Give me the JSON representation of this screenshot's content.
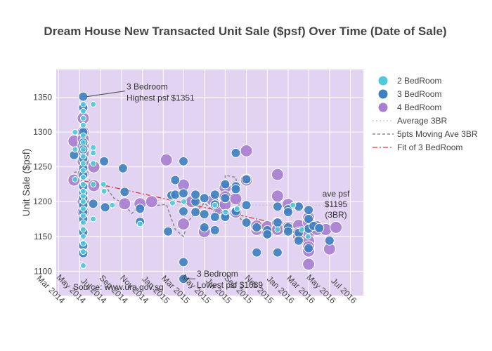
{
  "chart_data": {
    "type": "scatter",
    "title": "Dream House New Transacted Unit Sale ($psf) Over Time (Date of Sale)",
    "ylabel": "Unit Sale ($psf)",
    "xlabel": "",
    "ylim": [
      1065,
      1390
    ],
    "yticks": [
      1100,
      1150,
      1200,
      1250,
      1300,
      1350
    ],
    "xlim": [
      "2014-02-22",
      "2016-08-08"
    ],
    "xticks": [
      {
        "date": "2014-03-01",
        "label": "Mar 2014"
      },
      {
        "date": "2014-05-01",
        "label": "May 2014"
      },
      {
        "date": "2014-07-01",
        "label": "Jul 2014"
      },
      {
        "date": "2014-09-01",
        "label": "Sep 2014"
      },
      {
        "date": "2014-11-01",
        "label": "Nov 2014"
      },
      {
        "date": "2015-01-01",
        "label": "Jan 2015"
      },
      {
        "date": "2015-03-01",
        "label": "Mar 2015"
      },
      {
        "date": "2015-05-01",
        "label": "May 2015"
      },
      {
        "date": "2015-07-01",
        "label": "Jul 2015"
      },
      {
        "date": "2015-09-01",
        "label": "Sep 2015"
      },
      {
        "date": "2015-11-01",
        "label": "Nov 2015"
      },
      {
        "date": "2016-01-01",
        "label": "Jan 2016"
      },
      {
        "date": "2016-03-01",
        "label": "Mar 2016"
      },
      {
        "date": "2016-05-01",
        "label": "May 2016"
      },
      {
        "date": "2016-07-01",
        "label": "Jul 2016"
      }
    ],
    "grid": true,
    "legend_position": "right",
    "colors": {
      "plot_bg": "#e2d3f2",
      "two_bedroom": "#4ec9dd",
      "three_bedroom": "#3d80c0",
      "four_bedroom": "#a77ed0",
      "average_line": "#c9c9c9",
      "moving_avg_line": "#8a8a8a",
      "fit_line": "#d9363e"
    },
    "series": [
      {
        "name": "2 BedRoom",
        "marker_size": "small",
        "points": [
          [
            "2014-05-12",
            1108
          ],
          [
            "2014-05-12",
            1128
          ],
          [
            "2014-05-12",
            1140
          ],
          [
            "2014-05-12",
            1150
          ],
          [
            "2014-05-12",
            1160
          ],
          [
            "2014-05-12",
            1170
          ],
          [
            "2014-05-12",
            1180
          ],
          [
            "2014-05-12",
            1190
          ],
          [
            "2014-05-12",
            1200
          ],
          [
            "2014-05-12",
            1208
          ],
          [
            "2014-05-12",
            1215
          ],
          [
            "2014-05-12",
            1225
          ],
          [
            "2014-05-12",
            1235
          ],
          [
            "2014-05-12",
            1245
          ],
          [
            "2014-05-12",
            1255
          ],
          [
            "2014-05-12",
            1265
          ],
          [
            "2014-05-12",
            1275
          ],
          [
            "2014-05-12",
            1285
          ],
          [
            "2014-05-12",
            1295
          ],
          [
            "2014-05-12",
            1310
          ],
          [
            "2014-05-12",
            1320
          ],
          [
            "2014-05-12",
            1330
          ],
          [
            "2014-05-12",
            1340
          ],
          [
            "2014-04-18",
            1300
          ],
          [
            "2014-04-18",
            1275
          ],
          [
            "2014-04-18",
            1232
          ],
          [
            "2014-06-10",
            1340
          ],
          [
            "2014-06-10",
            1278
          ],
          [
            "2014-06-10",
            1270
          ],
          [
            "2014-06-10",
            1255
          ],
          [
            "2014-06-10",
            1175
          ],
          [
            "2014-06-10",
            1225
          ],
          [
            "2014-07-10",
            1225
          ],
          [
            "2014-07-12",
            1215
          ],
          [
            "2014-08-05",
            1195
          ],
          [
            "2014-10-25",
            1168
          ],
          [
            "2015-01-28",
            1198
          ],
          [
            "2015-03-02",
            1200
          ],
          [
            "2015-06-01",
            1195
          ],
          [
            "2015-07-02",
            1185
          ],
          [
            "2015-08-05",
            1190
          ],
          [
            "2015-12-01",
            1160
          ],
          [
            "2016-01-15",
            1195
          ],
          [
            "2016-02-10",
            1160
          ],
          [
            "2016-02-28",
            1150
          ]
        ]
      },
      {
        "name": "3 BedRoom",
        "marker_size": "medium",
        "points": [
          [
            "2014-05-12",
            1351
          ],
          [
            "2014-05-12",
            1335
          ],
          [
            "2014-05-12",
            1300
          ],
          [
            "2014-05-12",
            1285
          ],
          [
            "2014-05-12",
            1275
          ],
          [
            "2014-05-12",
            1262
          ],
          [
            "2014-05-12",
            1248
          ],
          [
            "2014-05-12",
            1238
          ],
          [
            "2014-05-12",
            1222
          ],
          [
            "2014-05-12",
            1212
          ],
          [
            "2014-05-12",
            1205
          ],
          [
            "2014-05-12",
            1195
          ],
          [
            "2014-05-12",
            1185
          ],
          [
            "2014-05-12",
            1175
          ],
          [
            "2014-05-12",
            1156
          ],
          [
            "2014-05-12",
            1137
          ],
          [
            "2014-05-12",
            1126
          ],
          [
            "2014-04-15",
            1267
          ],
          [
            "2014-06-10",
            1197
          ],
          [
            "2014-07-12",
            1258
          ],
          [
            "2014-07-15",
            1192
          ],
          [
            "2014-09-05",
            1248
          ],
          [
            "2014-09-10",
            1214
          ],
          [
            "2014-10-25",
            1190
          ],
          [
            "2014-10-25",
            1171
          ],
          [
            "2015-01-15",
            1157
          ],
          [
            "2015-01-25",
            1209
          ],
          [
            "2015-02-05",
            1231
          ],
          [
            "2015-02-05",
            1210
          ],
          [
            "2015-03-01",
            1258
          ],
          [
            "2015-03-01",
            1212
          ],
          [
            "2015-03-01",
            1186
          ],
          [
            "2015-03-01",
            1113
          ],
          [
            "2015-03-01",
            1089
          ],
          [
            "2015-04-05",
            1200
          ],
          [
            "2015-04-05",
            1185
          ],
          [
            "2015-04-05",
            1210
          ],
          [
            "2015-05-01",
            1205
          ],
          [
            "2015-05-01",
            1182
          ],
          [
            "2015-05-01",
            1163
          ],
          [
            "2015-06-01",
            1210
          ],
          [
            "2015-06-01",
            1196
          ],
          [
            "2015-06-01",
            1178
          ],
          [
            "2015-06-01",
            1159
          ],
          [
            "2015-07-01",
            1225
          ],
          [
            "2015-07-01",
            1205
          ],
          [
            "2015-07-01",
            1182
          ],
          [
            "2015-07-01",
            1178
          ],
          [
            "2015-08-01",
            1270
          ],
          [
            "2015-08-01",
            1222
          ],
          [
            "2015-08-01",
            1218
          ],
          [
            "2015-08-01",
            1187
          ],
          [
            "2015-08-01",
            1186
          ],
          [
            "2015-09-01",
            1232
          ],
          [
            "2015-09-01",
            1195
          ],
          [
            "2015-09-01",
            1170
          ],
          [
            "2015-10-01",
            1163
          ],
          [
            "2015-10-01",
            1127
          ],
          [
            "2015-11-01",
            1159
          ],
          [
            "2015-11-01",
            1153
          ],
          [
            "2015-12-01",
            1193
          ],
          [
            "2015-12-01",
            1170
          ],
          [
            "2015-12-01",
            1127
          ],
          [
            "2016-01-01",
            1189
          ],
          [
            "2016-01-01",
            1185
          ],
          [
            "2016-01-01",
            1163
          ],
          [
            "2016-01-01",
            1157
          ],
          [
            "2016-02-01",
            1193
          ],
          [
            "2016-02-01",
            1155
          ],
          [
            "2016-02-01",
            1144
          ],
          [
            "2016-03-01",
            1188
          ],
          [
            "2016-03-01",
            1175
          ],
          [
            "2016-03-01",
            1161
          ],
          [
            "2016-03-01",
            1133
          ],
          [
            "2016-03-15",
            1165
          ],
          [
            "2016-04-01",
            1162
          ],
          [
            "2016-05-01",
            1144
          ]
        ]
      },
      {
        "name": "4 BedRoom",
        "marker_size": "large",
        "points": [
          [
            "2014-04-15",
            1287
          ],
          [
            "2014-04-15",
            1231
          ],
          [
            "2014-05-12",
            1320
          ],
          [
            "2014-05-12",
            1300
          ],
          [
            "2014-05-12",
            1290
          ],
          [
            "2014-05-12",
            1280
          ],
          [
            "2014-05-12",
            1270
          ],
          [
            "2014-05-12",
            1258
          ],
          [
            "2014-05-12",
            1240
          ],
          [
            "2014-05-12",
            1200
          ],
          [
            "2014-05-12",
            1185
          ],
          [
            "2014-06-12",
            1250
          ],
          [
            "2014-06-12",
            1223
          ],
          [
            "2014-09-10",
            1197
          ],
          [
            "2014-10-25",
            1197
          ],
          [
            "2014-11-28",
            1200
          ],
          [
            "2015-01-10",
            1260
          ],
          [
            "2015-03-01",
            1224
          ],
          [
            "2015-03-01",
            1168
          ],
          [
            "2015-03-25",
            1200
          ],
          [
            "2015-05-01",
            1157
          ],
          [
            "2015-05-25",
            1202
          ],
          [
            "2015-06-15",
            1190
          ],
          [
            "2015-07-01",
            1220
          ],
          [
            "2015-07-01",
            1207
          ],
          [
            "2015-07-01",
            1196
          ],
          [
            "2015-08-01",
            1185
          ],
          [
            "2015-08-01",
            1204
          ],
          [
            "2015-09-01",
            1273
          ],
          [
            "2015-09-01",
            1231
          ],
          [
            "2015-10-01",
            1160
          ],
          [
            "2015-10-01",
            1165
          ],
          [
            "2015-11-01",
            1155
          ],
          [
            "2015-11-01",
            1164
          ],
          [
            "2015-12-01",
            1239
          ],
          [
            "2015-12-01",
            1208
          ],
          [
            "2015-12-01",
            1169
          ],
          [
            "2015-12-01",
            1161
          ],
          [
            "2015-12-01",
            1160
          ],
          [
            "2016-01-01",
            1196
          ],
          [
            "2016-01-01",
            1163
          ],
          [
            "2016-02-01",
            1166
          ],
          [
            "2016-02-01",
            1155
          ],
          [
            "2016-02-01",
            1150
          ],
          [
            "2016-03-01",
            1177
          ],
          [
            "2016-03-01",
            1170
          ],
          [
            "2016-03-01",
            1155
          ],
          [
            "2016-03-01",
            1143
          ],
          [
            "2016-03-01",
            1135
          ],
          [
            "2016-03-01",
            1129
          ],
          [
            "2016-03-01",
            1110
          ],
          [
            "2016-03-25",
            1164
          ],
          [
            "2016-03-25",
            1160
          ],
          [
            "2016-04-20",
            1160
          ],
          [
            "2016-05-01",
            1132
          ],
          [
            "2016-05-20",
            1163
          ]
        ]
      },
      {
        "name": "Average 3BR",
        "kind": "line",
        "style": "dotted",
        "points": [
          [
            "2014-05-12",
            1195
          ],
          [
            "2016-05-01",
            1195
          ]
        ]
      },
      {
        "name": "5pts Moving Ave 3BR",
        "kind": "line",
        "style": "dashed",
        "points": [
          [
            "2014-04-15",
            1242
          ],
          [
            "2014-05-12",
            1244
          ],
          [
            "2014-06-12",
            1222
          ],
          [
            "2014-07-12",
            1225
          ],
          [
            "2014-08-10",
            1205
          ],
          [
            "2014-09-05",
            1198
          ],
          [
            "2014-10-01",
            1183
          ],
          [
            "2014-10-25",
            1195
          ],
          [
            "2014-11-28",
            1194
          ],
          [
            "2015-01-10",
            1196
          ],
          [
            "2015-02-05",
            1160
          ],
          [
            "2015-03-01",
            1150
          ],
          [
            "2015-03-15",
            1172
          ],
          [
            "2015-04-15",
            1190
          ],
          [
            "2015-05-01",
            1198
          ],
          [
            "2015-06-01",
            1185
          ],
          [
            "2015-07-01",
            1210
          ],
          [
            "2015-07-01",
            1238
          ],
          [
            "2015-08-01",
            1235
          ],
          [
            "2015-08-15",
            1175
          ],
          [
            "2015-09-01",
            1170
          ],
          [
            "2015-09-15",
            1172
          ],
          [
            "2015-10-15",
            1168
          ],
          [
            "2015-11-01",
            1160
          ],
          [
            "2015-12-01",
            1172
          ],
          [
            "2016-01-01",
            1163
          ],
          [
            "2016-02-01",
            1150
          ],
          [
            "2016-03-01",
            1156
          ],
          [
            "2016-04-01",
            1162
          ],
          [
            "2016-05-01",
            1158
          ]
        ]
      },
      {
        "name": "Fit of 3 BedRoom",
        "kind": "line",
        "style": "dashdot",
        "points": [
          [
            "2014-04-15",
            1233
          ],
          [
            "2016-05-01",
            1152
          ]
        ]
      }
    ],
    "annotations": [
      {
        "lines": [
          "3 Bedroom",
          "Highest psf $1351"
        ],
        "anchor": [
          "2014-05-12",
          1351
        ]
      },
      {
        "lines": [
          "3 Bedroom",
          "Lowest psf $1089"
        ],
        "anchor": [
          "2015-03-01",
          1089
        ]
      },
      {
        "lines": [
          "ave psf",
          "$1195",
          "(3BR)"
        ],
        "anchor": [
          "2016-04-15",
          1195
        ]
      },
      {
        "lines": [
          "Source: www.ura.gov.sg"
        ],
        "anchor": [
          "2014-05-05",
          1072
        ]
      }
    ]
  }
}
